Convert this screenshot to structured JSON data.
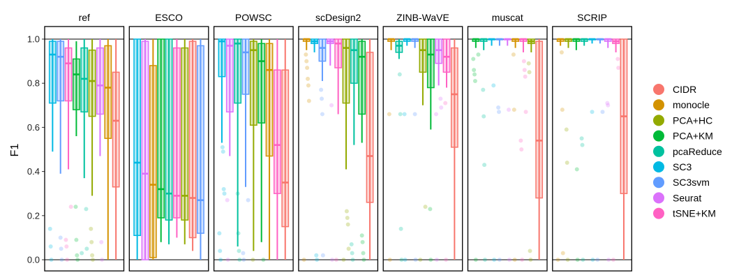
{
  "chart_data": {
    "type": "boxplot",
    "ylabel": "F1",
    "xlabel": "",
    "ylim": [
      0,
      1
    ],
    "yticks": [
      "0.0",
      "0.2",
      "0.4",
      "0.6",
      "0.8",
      "1.0"
    ],
    "grid": false,
    "legend_position": "right",
    "methods": [
      "CIDR",
      "monocle",
      "PCA+HC",
      "PCA+KM",
      "pcaReduce",
      "SC3",
      "SC3svm",
      "Seurat",
      "tSNE+KM"
    ],
    "colors": {
      "CIDR": "#F8766D",
      "monocle": "#D39200",
      "PCA+HC": "#93AA00",
      "PCA+KM": "#00BA38",
      "pcaReduce": "#00C19F",
      "SC3": "#00B9E3",
      "SC3svm": "#619CFF",
      "Seurat": "#DB72FB",
      "tSNE+KM": "#FF61C3"
    },
    "panels": [
      {
        "name": "ref",
        "boxes": [
          {
            "method": "SC3",
            "min": 0.49,
            "q1": 0.71,
            "median": 0.93,
            "q3": 0.99,
            "max": 1.0,
            "outliers": [
              0.14,
              0.06,
              0.0
            ]
          },
          {
            "method": "SC3svm",
            "min": 0.39,
            "q1": 0.72,
            "median": 0.92,
            "q3": 0.99,
            "max": 1.0,
            "outliers": [
              0.1,
              0.05,
              0.0
            ]
          },
          {
            "method": "tSNE+KM",
            "min": 0.41,
            "q1": 0.72,
            "median": 0.89,
            "q3": 0.96,
            "max": 1.0,
            "outliers": [
              0.24,
              0.09,
              0.06,
              0.0
            ]
          },
          {
            "method": "PCA+KM",
            "min": 0.56,
            "q1": 0.68,
            "median": 0.84,
            "q3": 0.91,
            "max": 0.99,
            "outliers": [
              0.24,
              0.09,
              0.02,
              0.0
            ]
          },
          {
            "method": "pcaReduce",
            "min": 0.37,
            "q1": 0.67,
            "median": 0.82,
            "q3": 0.96,
            "max": 1.0,
            "outliers": [
              0.23,
              0.05,
              0.03
            ]
          },
          {
            "method": "PCA+HC",
            "min": 0.29,
            "q1": 0.65,
            "median": 0.81,
            "q3": 0.95,
            "max": 1.0,
            "outliers": [
              0.14,
              0.08,
              0.02,
              0.0
            ]
          },
          {
            "method": "Seurat",
            "min": 0.47,
            "q1": 0.66,
            "median": 0.79,
            "q3": 0.96,
            "max": 1.0,
            "outliers": [
              0.08,
              0.0
            ]
          },
          {
            "method": "monocle",
            "min": 0.0,
            "q1": 0.55,
            "median": 0.78,
            "q3": 0.97,
            "max": 1.0,
            "outliers": []
          },
          {
            "method": "CIDR",
            "min": 0.0,
            "q1": 0.33,
            "median": 0.63,
            "q3": 0.85,
            "max": 1.0,
            "outliers": []
          }
        ]
      },
      {
        "name": "ESCO",
        "boxes": [
          {
            "method": "SC3",
            "min": 0.0,
            "q1": 0.11,
            "median": 0.44,
            "q3": 1.0,
            "max": 1.0,
            "outliers": []
          },
          {
            "method": "Seurat",
            "min": 0.0,
            "q1": 0.0,
            "median": 0.39,
            "q3": 0.99,
            "max": 1.0,
            "outliers": []
          },
          {
            "method": "monocle",
            "min": 0.0,
            "q1": 0.01,
            "median": 0.34,
            "q3": 0.88,
            "max": 1.0,
            "outliers": []
          },
          {
            "method": "PCA+KM",
            "min": 0.08,
            "q1": 0.19,
            "median": 0.32,
            "q3": 1.0,
            "max": 1.0,
            "outliers": []
          },
          {
            "method": "pcaReduce",
            "min": 0.07,
            "q1": 0.18,
            "median": 0.3,
            "q3": 1.0,
            "max": 1.0,
            "outliers": []
          },
          {
            "method": "tSNE+KM",
            "min": 0.1,
            "q1": 0.19,
            "median": 0.29,
            "q3": 0.96,
            "max": 1.0,
            "outliers": []
          },
          {
            "method": "PCA+HC",
            "min": 0.07,
            "q1": 0.18,
            "median": 0.29,
            "q3": 0.96,
            "max": 1.0,
            "outliers": []
          },
          {
            "method": "CIDR",
            "min": 0.04,
            "q1": 0.1,
            "median": 0.28,
            "q3": 0.99,
            "max": 1.0,
            "outliers": []
          },
          {
            "method": "SC3svm",
            "min": 0.0,
            "q1": 0.12,
            "median": 0.27,
            "q3": 0.97,
            "max": 1.0,
            "outliers": []
          }
        ]
      },
      {
        "name": "POWSC",
        "boxes": [
          {
            "method": "SC3",
            "min": 0.53,
            "q1": 0.83,
            "median": 0.99,
            "q3": 1.0,
            "max": 1.0,
            "outliers": [
              0.51,
              0.49,
              0.32,
              0.3,
              0.12,
              0.04,
              0.0
            ]
          },
          {
            "method": "Seurat",
            "min": 0.47,
            "q1": 0.67,
            "median": 0.97,
            "q3": 1.0,
            "max": 1.0,
            "outliers": [
              0.27,
              0.0
            ]
          },
          {
            "method": "pcaReduce",
            "min": 0.06,
            "q1": 0.71,
            "median": 0.98,
            "q3": 1.0,
            "max": 1.0,
            "outliers": [
              0.3,
              0.12,
              0.04,
              0.0
            ]
          },
          {
            "method": "SC3svm",
            "min": 0.33,
            "q1": 0.75,
            "median": 0.94,
            "q3": 1.0,
            "max": 1.0,
            "outliers": [
              0.27,
              0.03,
              0.0
            ]
          },
          {
            "method": "PCA+HC",
            "min": 0.04,
            "q1": 0.61,
            "median": 0.95,
            "q3": 0.99,
            "max": 1.0,
            "outliers": [
              0.0
            ]
          },
          {
            "method": "PCA+KM",
            "min": 0.08,
            "q1": 0.62,
            "median": 0.9,
            "q3": 0.98,
            "max": 1.0,
            "outliers": [
              0.0
            ]
          },
          {
            "method": "monocle",
            "min": 0.0,
            "q1": 0.47,
            "median": 0.86,
            "q3": 0.98,
            "max": 1.0,
            "outliers": []
          },
          {
            "method": "tSNE+KM",
            "min": 0.0,
            "q1": 0.3,
            "median": 0.52,
            "q3": 0.86,
            "max": 1.0,
            "outliers": []
          },
          {
            "method": "CIDR",
            "min": 0.0,
            "q1": 0.15,
            "median": 0.35,
            "q3": 0.86,
            "max": 1.0,
            "outliers": []
          }
        ]
      },
      {
        "name": "scDesign2",
        "boxes": [
          {
            "method": "monocle",
            "min": 0.95,
            "q1": 0.99,
            "median": 1.0,
            "q3": 1.0,
            "max": 1.0,
            "outliers": [
              0.93,
              0.9,
              0.87,
              0.82,
              0.79,
              0.72,
              0.0
            ]
          },
          {
            "method": "SC3",
            "min": 0.94,
            "q1": 0.98,
            "median": 0.99,
            "q3": 1.0,
            "max": 1.0,
            "outliers": [
              0.02,
              0.0
            ]
          },
          {
            "method": "SC3svm",
            "min": 0.81,
            "q1": 0.9,
            "median": 0.96,
            "q3": 1.0,
            "max": 1.0,
            "outliers": [
              0.77,
              0.73,
              0.66,
              0.02
            ]
          },
          {
            "method": "Seurat",
            "min": 0.88,
            "q1": 0.98,
            "median": 0.99,
            "q3": 1.0,
            "max": 1.0,
            "outliers": [
              0.7,
              0.0
            ]
          },
          {
            "method": "tSNE+KM",
            "min": 0.66,
            "q1": 0.87,
            "median": 0.98,
            "q3": 1.0,
            "max": 1.0,
            "outliers": [
              0.0
            ]
          },
          {
            "method": "PCA+HC",
            "min": 0.41,
            "q1": 0.71,
            "median": 0.96,
            "q3": 1.0,
            "max": 1.0,
            "outliers": [
              0.22,
              0.19,
              0.16,
              0.05,
              0.0
            ]
          },
          {
            "method": "pcaReduce",
            "min": 0.52,
            "q1": 0.8,
            "median": 0.95,
            "q3": 1.0,
            "max": 1.0,
            "outliers": [
              0.07,
              0.03,
              0.0
            ]
          },
          {
            "method": "PCA+KM",
            "min": 0.53,
            "q1": 0.66,
            "median": 0.92,
            "q3": 0.99,
            "max": 1.0,
            "outliers": [
              0.11,
              0.08,
              0.03,
              0.0
            ]
          },
          {
            "method": "CIDR",
            "min": 0.0,
            "q1": 0.26,
            "median": 0.47,
            "q3": 0.94,
            "max": 1.0,
            "outliers": []
          }
        ]
      },
      {
        "name": "ZINB-WaVE",
        "boxes": [
          {
            "method": "monocle",
            "min": 0.95,
            "q1": 0.99,
            "median": 1.0,
            "q3": 1.0,
            "max": 1.0,
            "outliers": [
              0.66,
              0.0
            ]
          },
          {
            "method": "pcaReduce",
            "min": 0.91,
            "q1": 0.94,
            "median": 0.97,
            "q3": 0.99,
            "max": 1.0,
            "outliers": [
              0.84,
              0.66,
              0.14,
              0.0
            ]
          },
          {
            "method": "SC3",
            "min": 0.97,
            "q1": 0.99,
            "median": 1.0,
            "q3": 1.0,
            "max": 1.0,
            "outliers": [
              0.66,
              0.0
            ]
          },
          {
            "method": "SC3svm",
            "min": 0.96,
            "q1": 0.99,
            "median": 1.0,
            "q3": 1.0,
            "max": 1.0,
            "outliers": [
              0.66,
              0.0
            ]
          },
          {
            "method": "PCA+HC",
            "min": 0.7,
            "q1": 0.85,
            "median": 0.95,
            "q3": 1.0,
            "max": 1.0,
            "outliers": [
              0.24,
              0.0
            ]
          },
          {
            "method": "PCA+KM",
            "min": 0.59,
            "q1": 0.78,
            "median": 0.93,
            "q3": 1.0,
            "max": 1.0,
            "outliers": [
              0.23,
              0.0
            ]
          },
          {
            "method": "Seurat",
            "min": 0.79,
            "q1": 0.89,
            "median": 0.95,
            "q3": 1.0,
            "max": 1.0,
            "outliers": [
              0.73,
              0.69,
              0.66,
              0.0
            ]
          },
          {
            "method": "tSNE+KM",
            "min": 0.78,
            "q1": 0.85,
            "median": 0.92,
            "q3": 1.0,
            "max": 1.0,
            "outliers": [
              0.71,
              0.0
            ]
          },
          {
            "method": "CIDR",
            "min": 0.0,
            "q1": 0.51,
            "median": 0.75,
            "q3": 0.96,
            "max": 1.0,
            "outliers": []
          }
        ]
      },
      {
        "name": "muscat",
        "boxes": [
          {
            "method": "PCA+KM",
            "min": 0.96,
            "q1": 0.99,
            "median": 1.0,
            "q3": 1.0,
            "max": 1.0,
            "outliers": [
              0.93,
              0.91,
              0.86,
              0.84,
              0.81,
              0.0
            ]
          },
          {
            "method": "pcaReduce",
            "min": 0.95,
            "q1": 0.99,
            "median": 1.0,
            "q3": 1.0,
            "max": 1.0,
            "outliers": [
              0.77,
              0.65,
              0.43,
              0.0
            ]
          },
          {
            "method": "SC3",
            "min": 0.97,
            "q1": 1.0,
            "median": 1.0,
            "q3": 1.0,
            "max": 1.0,
            "outliers": [
              0.79,
              0.0
            ]
          },
          {
            "method": "SC3svm",
            "min": 0.97,
            "q1": 1.0,
            "median": 1.0,
            "q3": 1.0,
            "max": 1.0,
            "outliers": [
              0.69,
              0.67,
              0.0
            ]
          },
          {
            "method": "Seurat",
            "min": 0.97,
            "q1": 1.0,
            "median": 1.0,
            "q3": 1.0,
            "max": 1.0,
            "outliers": [
              0.68,
              0.0
            ]
          },
          {
            "method": "monocle",
            "min": 0.96,
            "q1": 0.99,
            "median": 1.0,
            "q3": 1.0,
            "max": 1.0,
            "outliers": [
              0.93,
              0.68,
              0.0
            ]
          },
          {
            "method": "tSNE+KM",
            "min": 0.94,
            "q1": 0.99,
            "median": 1.0,
            "q3": 1.0,
            "max": 1.0,
            "outliers": [
              0.9,
              0.86,
              0.83,
              0.67,
              0.54,
              0.5,
              0.0
            ]
          },
          {
            "method": "PCA+HC",
            "min": 0.94,
            "q1": 0.98,
            "median": 0.99,
            "q3": 1.0,
            "max": 1.0,
            "outliers": [
              0.89,
              0.85,
              0.04,
              0.0
            ]
          },
          {
            "method": "CIDR",
            "min": 0.0,
            "q1": 0.28,
            "median": 0.54,
            "q3": 0.99,
            "max": 1.0,
            "outliers": []
          }
        ]
      },
      {
        "name": "SCRIP",
        "boxes": [
          {
            "method": "monocle",
            "min": 0.97,
            "q1": 0.99,
            "median": 1.0,
            "q3": 1.0,
            "max": 1.0,
            "outliers": [
              0.94,
              0.68,
              0.03,
              0.0
            ]
          },
          {
            "method": "PCA+HC",
            "min": 0.96,
            "q1": 0.99,
            "median": 1.0,
            "q3": 1.0,
            "max": 1.0,
            "outliers": [
              0.59,
              0.44,
              0.0
            ]
          },
          {
            "method": "PCA+KM",
            "min": 0.95,
            "q1": 0.99,
            "median": 1.0,
            "q3": 1.0,
            "max": 1.0,
            "outliers": [
              0.41,
              0.0
            ]
          },
          {
            "method": "pcaReduce",
            "min": 0.97,
            "q1": 0.99,
            "median": 1.0,
            "q3": 1.0,
            "max": 1.0,
            "outliers": [
              0.55,
              0.52,
              0.0
            ]
          },
          {
            "method": "SC3",
            "min": 0.98,
            "q1": 1.0,
            "median": 1.0,
            "q3": 1.0,
            "max": 1.0,
            "outliers": [
              0.67,
              0.0
            ]
          },
          {
            "method": "SC3svm",
            "min": 0.98,
            "q1": 1.0,
            "median": 1.0,
            "q3": 1.0,
            "max": 1.0,
            "outliers": [
              0.67,
              0.0
            ]
          },
          {
            "method": "Seurat",
            "min": 0.96,
            "q1": 0.99,
            "median": 1.0,
            "q3": 1.0,
            "max": 1.0,
            "outliers": [
              0.71,
              0.7,
              0.0
            ]
          },
          {
            "method": "tSNE+KM",
            "min": 0.94,
            "q1": 0.98,
            "median": 0.99,
            "q3": 1.0,
            "max": 1.0,
            "outliers": [
              0.91,
              0.87,
              0.0
            ]
          },
          {
            "method": "CIDR",
            "min": 0.0,
            "q1": 0.3,
            "median": 0.65,
            "q3": 1.0,
            "max": 1.0,
            "outliers": []
          }
        ]
      }
    ]
  }
}
